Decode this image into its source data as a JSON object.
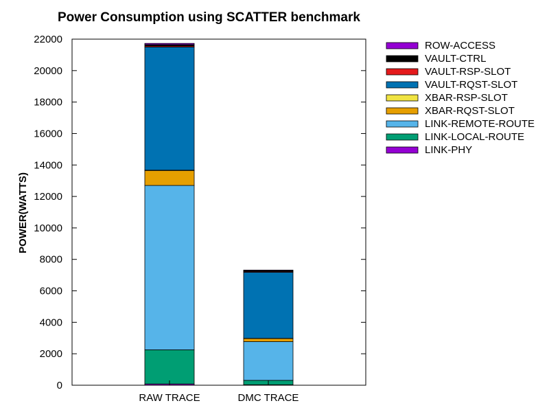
{
  "chart_data": {
    "type": "bar",
    "stacked": true,
    "title": "Power Consumption using SCATTER benchmark",
    "xlabel": "",
    "ylabel": "POWER(WATTS)",
    "ylim": [
      0,
      22000
    ],
    "yticks": [
      0,
      2000,
      4000,
      6000,
      8000,
      10000,
      12000,
      14000,
      16000,
      18000,
      20000,
      22000
    ],
    "grid": false,
    "legend_position": "right",
    "categories": [
      "RAW TRACE",
      "DMC TRACE"
    ],
    "series": [
      {
        "name": "LINK-PHY",
        "color": "#9400D3",
        "values": [
          80,
          30
        ]
      },
      {
        "name": "LINK-LOCAL-ROUTE",
        "color": "#009E73",
        "values": [
          2170,
          280
        ]
      },
      {
        "name": "LINK-REMOTE-ROUTE",
        "color": "#56B4E9",
        "values": [
          10450,
          2460
        ]
      },
      {
        "name": "XBAR-RQST-SLOT",
        "color": "#E69F00",
        "values": [
          950,
          200
        ]
      },
      {
        "name": "XBAR-RSP-SLOT",
        "color": "#F0E442",
        "values": [
          20,
          10
        ]
      },
      {
        "name": "VAULT-RQST-SLOT",
        "color": "#0072B2",
        "values": [
          7830,
          4200
        ]
      },
      {
        "name": "VAULT-RSP-SLOT",
        "color": "#E41A1C",
        "values": [
          70,
          50
        ]
      },
      {
        "name": "VAULT-CTRL",
        "color": "#000000",
        "values": [
          80,
          50
        ]
      },
      {
        "name": "ROW-ACCESS",
        "color": "#9400D3",
        "values": [
          80,
          40
        ]
      }
    ],
    "legend_order": [
      "ROW-ACCESS",
      "VAULT-CTRL",
      "VAULT-RSP-SLOT",
      "VAULT-RQST-SLOT",
      "XBAR-RSP-SLOT",
      "XBAR-RQST-SLOT",
      "LINK-REMOTE-ROUTE",
      "LINK-LOCAL-ROUTE",
      "LINK-PHY"
    ]
  }
}
